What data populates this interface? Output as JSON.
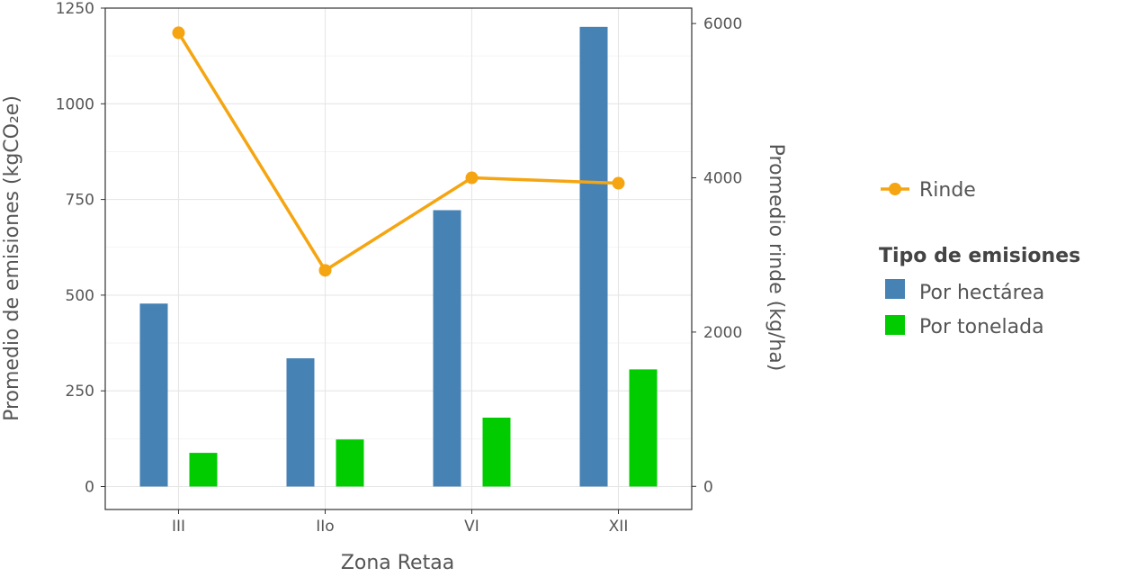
{
  "chart_data": {
    "type": "bar",
    "categories": [
      "III",
      "IIo",
      "VI",
      "XII"
    ],
    "series": [
      {
        "name": "Por hectárea",
        "values": [
          478,
          335,
          722,
          1201
        ],
        "color": "#4682B4",
        "axis": "left"
      },
      {
        "name": "Por tonelada",
        "values": [
          88,
          123,
          180,
          306
        ],
        "color": "#00CC00",
        "axis": "left"
      },
      {
        "name": "Rinde",
        "type": "line",
        "values": [
          5880,
          2800,
          4000,
          3930
        ],
        "color": "#F5A511",
        "axis": "right"
      }
    ],
    "xlabel": "Zona Retaa",
    "ylabel": "Promedio de emisiones (kgCO₂e)",
    "y2label": "Promedio rinde (kg/ha)",
    "ylim": [
      -60,
      1250
    ],
    "y2lim": [
      -300,
      6200
    ],
    "yticks": [
      0,
      250,
      500,
      750,
      1000,
      1250
    ],
    "y2ticks": [
      0,
      2000,
      4000,
      6000
    ],
    "grid": true,
    "legend": {
      "position": "right",
      "line_entry": "Rinde",
      "title": "Tipo de emisiones",
      "entries": [
        "Por hectárea",
        "Por tonelada"
      ]
    }
  }
}
